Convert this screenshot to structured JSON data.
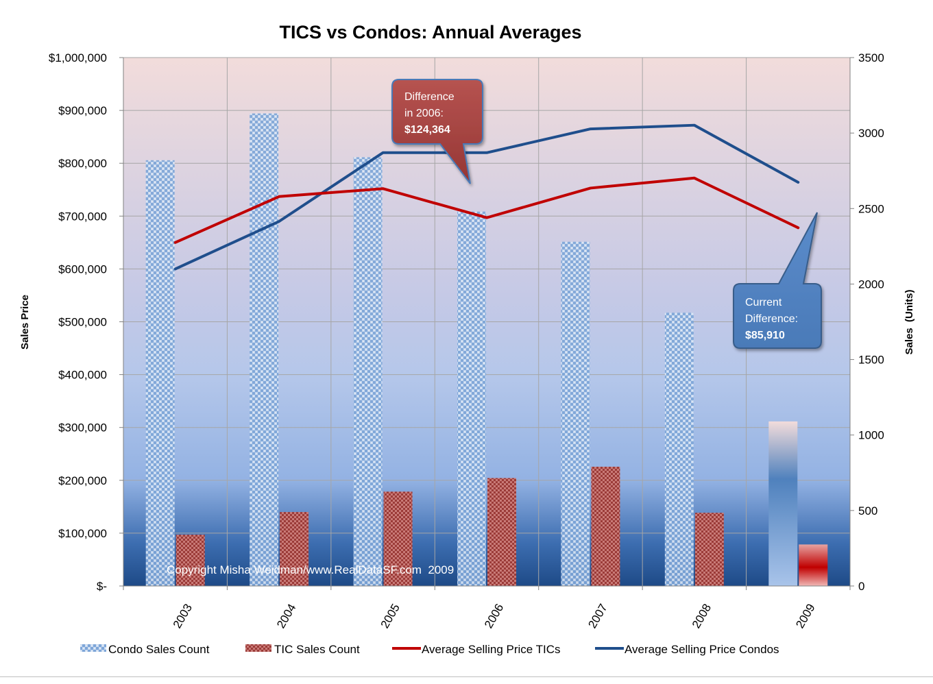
{
  "chart_data": {
    "type": "bar",
    "title": "TICS vs Condos:  Annual Averages",
    "categories": [
      "2003",
      "2004",
      "2005",
      "2006",
      "2007",
      "2008",
      "2009"
    ],
    "y_left": {
      "label": "Sales Price",
      "range": [
        0,
        1000000
      ],
      "ticks": [
        0,
        100000,
        200000,
        300000,
        400000,
        500000,
        600000,
        700000,
        800000,
        900000,
        1000000
      ],
      "tick_labels": [
        "$-",
        "$100,000",
        "$200,000",
        "$300,000",
        "$400,000",
        "$500,000",
        "$600,000",
        "$700,000",
        "$800,000",
        "$900,000",
        "$1,000,000"
      ]
    },
    "y_right": {
      "label": "Sales  (Units)",
      "range": [
        0,
        3500
      ],
      "ticks": [
        0,
        500,
        1000,
        1500,
        2000,
        2500,
        3000,
        3500
      ],
      "tick_labels": [
        "0",
        "500",
        "1000",
        "1500",
        "2000",
        "2500",
        "3000",
        "3500"
      ]
    },
    "grid": true,
    "legend_position": "bottom",
    "series": [
      {
        "name": "Condo Sales Count",
        "type": "bar",
        "axis": "right",
        "color": "#4f81bd",
        "values": [
          2820,
          3130,
          2840,
          2480,
          2280,
          1810,
          1090
        ]
      },
      {
        "name": "TIC Sales Count",
        "type": "bar",
        "axis": "right",
        "color": "#c0504d",
        "values": [
          340,
          490,
          625,
          715,
          790,
          485,
          275
        ]
      },
      {
        "name": "Average Selling Price TICs",
        "type": "line",
        "axis": "left",
        "color": "#c00000",
        "values": [
          650000,
          737000,
          752000,
          697000,
          753000,
          772000,
          678000
        ]
      },
      {
        "name": "Average Selling Price Condos",
        "type": "line",
        "axis": "left",
        "color": "#1f4e8c",
        "values": [
          600000,
          690000,
          820000,
          820000,
          865000,
          872000,
          764000
        ]
      }
    ],
    "annotations": [
      {
        "id": "diff-2006",
        "lines": [
          "Difference",
          "in 2006:"
        ],
        "value": "$124,364",
        "color": "#a0403d"
      },
      {
        "id": "current-diff",
        "lines": [
          "Current",
          "Difference:"
        ],
        "value": "$85,910",
        "color": "#4f81bd"
      }
    ],
    "watermark": "Copyright Misha Weidman/www.RealDataSF.com  2009"
  }
}
